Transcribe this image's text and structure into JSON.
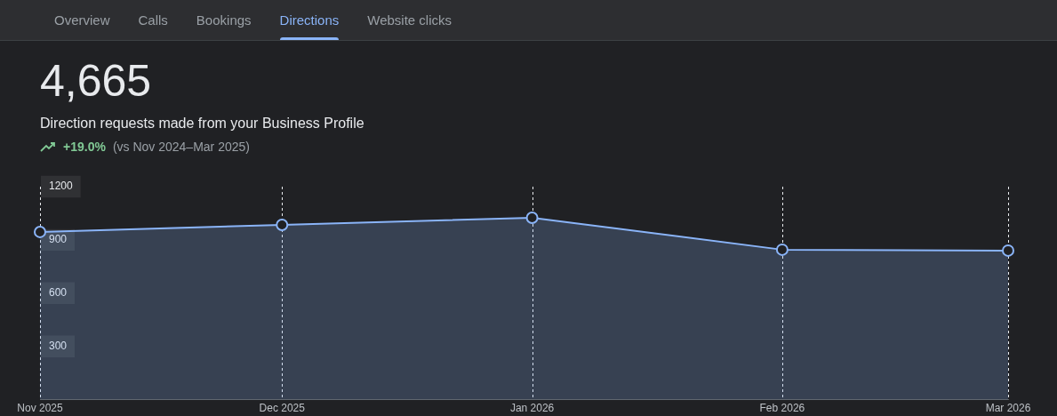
{
  "chart_data": {
    "type": "area",
    "title": "4,665",
    "subtitle": "Direction requests made from your Business Profile",
    "annotations": [
      "Overview",
      "Calls",
      "Bookings",
      "Directions",
      "Website clicks",
      "+19.0%",
      "(vs Nov 2024–Mar 2025)"
    ],
    "x": [
      "2025-11",
      "2025-12",
      "2026-01",
      "2026-02",
      "2026-03"
    ],
    "series": [
      {
        "color": "#8ab4f8",
        "values": [
          945,
          985,
          1025,
          845,
          840
        ]
      }
    ],
    "xlim": [
      "2025-11",
      "2026-03"
    ],
    "xticks": [
      {
        "value": "2025-11",
        "label": "Nov 2025"
      },
      {
        "value": "2025-12",
        "label": "Dec 2025"
      },
      {
        "value": "2026-01",
        "label": "Jan 2026"
      },
      {
        "value": "2026-02",
        "label": "Feb 2026"
      },
      {
        "value": "2026-03",
        "label": "Mar 2026"
      }
    ],
    "ylim": [
      0,
      1200
    ],
    "yticks": [
      300,
      600,
      900,
      1200
    ],
    "grid": "x",
    "marker": "circle",
    "legend": false
  }
}
